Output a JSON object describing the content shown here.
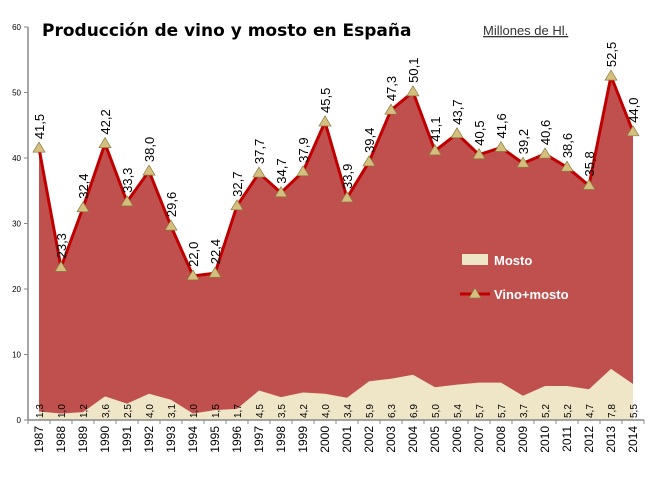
{
  "chart_data": {
    "type": "area",
    "title": "Producción de vino y mosto en España",
    "units_label": "Millones de Hl.",
    "categories": [
      "1987",
      "1988",
      "1989",
      "1990",
      "1991",
      "1992",
      "1993",
      "1994",
      "1995",
      "1996",
      "1997",
      "1998",
      "1999",
      "2000",
      "2001",
      "2002",
      "2003",
      "2004",
      "2005",
      "2006",
      "2007",
      "2008",
      "2009",
      "2010",
      "2011",
      "2012",
      "2013",
      "2014"
    ],
    "series": [
      {
        "name": "Vino+mosto",
        "color": "#c0504d",
        "line_color": "#c00000",
        "marker_color": "#d4bf7f",
        "values": [
          41.5,
          23.3,
          32.4,
          42.2,
          33.3,
          38.0,
          29.6,
          22.0,
          22.4,
          32.7,
          37.7,
          34.7,
          37.9,
          45.5,
          33.9,
          39.4,
          47.3,
          50.1,
          41.1,
          43.7,
          40.5,
          41.6,
          39.2,
          40.6,
          38.6,
          35.8,
          52.5,
          44.0
        ],
        "labels": [
          "41,5",
          "23,3",
          "32,4",
          "42,2",
          "33,3",
          "38,0",
          "29,6",
          "22,0",
          "22,4",
          "32,7",
          "37,7",
          "34,7",
          "37,9",
          "45,5",
          "33,9",
          "39,4",
          "47,3",
          "50,1",
          "41,1",
          "43,7",
          "40,5",
          "41,6",
          "39,2",
          "40,6",
          "38,6",
          "35,8",
          "52,5",
          "44,0"
        ]
      },
      {
        "name": "Mosto",
        "color": "#efe6c8",
        "values": [
          1.3,
          1.0,
          1.2,
          3.6,
          2.5,
          4.0,
          3.1,
          1.0,
          1.5,
          1.7,
          4.5,
          3.5,
          4.2,
          4.0,
          3.4,
          5.9,
          6.3,
          6.9,
          5.0,
          5.4,
          5.7,
          5.7,
          3.7,
          5.2,
          5.2,
          4.7,
          7.8,
          5.5
        ],
        "labels": [
          "1,3",
          "1,0",
          "1,2",
          "3,6",
          "2,5",
          "4,0",
          "3,1",
          "1,0",
          "1,5",
          "1,7",
          "4,5",
          "3,5",
          "4,2",
          "4,0",
          "3,4",
          "5,9",
          "6,3",
          "6,9",
          "5,0",
          "5,4",
          "5,7",
          "5,7",
          "3,7",
          "5,2",
          "5,2",
          "4,7",
          "7,8",
          "5,5"
        ]
      }
    ],
    "ylim": [
      0,
      60
    ],
    "yticks": [
      "0",
      "10",
      "20",
      "30",
      "40",
      "50",
      "60"
    ],
    "grid": false,
    "legend_placement": "right-center"
  }
}
